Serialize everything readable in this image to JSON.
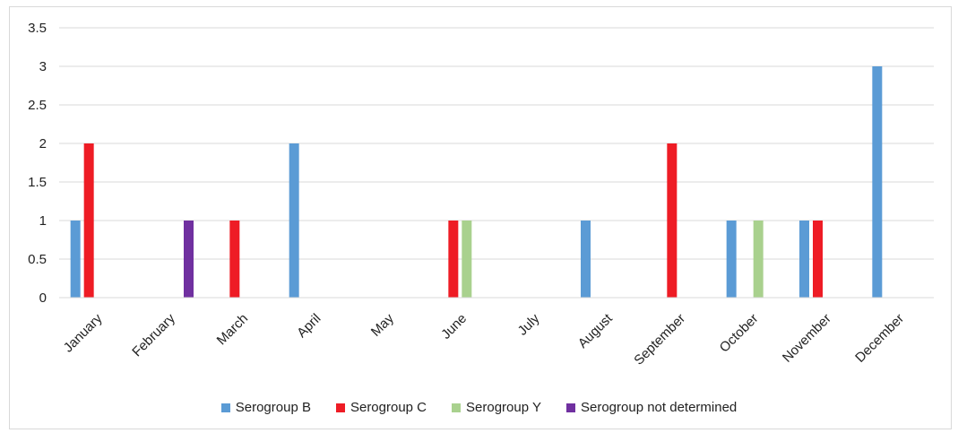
{
  "chart_data": {
    "type": "bar",
    "categories": [
      "January",
      "February",
      "March",
      "April",
      "May",
      "June",
      "July",
      "August",
      "September",
      "October",
      "November",
      "December"
    ],
    "series": [
      {
        "name": "Serogroup B",
        "color": "#5b9bd5",
        "values": [
          1,
          0,
          0,
          2,
          0,
          0,
          0,
          1,
          0,
          1,
          1,
          3
        ]
      },
      {
        "name": "Serogroup C",
        "color": "#ee1c25",
        "values": [
          2,
          0,
          1,
          0,
          0,
          1,
          0,
          0,
          2,
          0,
          1,
          0
        ]
      },
      {
        "name": "Serogroup Y",
        "color": "#a9d18e",
        "values": [
          0,
          0,
          0,
          0,
          0,
          1,
          0,
          0,
          0,
          1,
          0,
          0
        ]
      },
      {
        "name": "Serogroup not determined",
        "color": "#7030a0",
        "values": [
          0,
          1,
          0,
          0,
          0,
          0,
          0,
          0,
          0,
          0,
          0,
          0
        ]
      }
    ],
    "yticks": [
      "0",
      "0.5",
      "1",
      "1.5",
      "2",
      "2.5",
      "3",
      "3.5"
    ],
    "ylim": [
      0,
      3.5
    ],
    "grid": true,
    "legend_position": "bottom"
  }
}
